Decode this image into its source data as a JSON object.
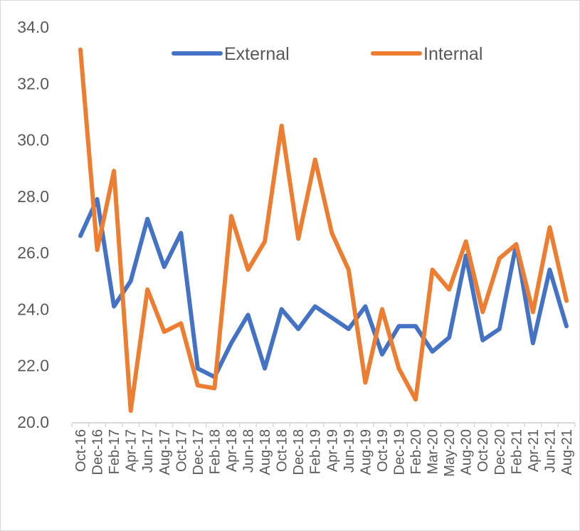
{
  "chart_data": {
    "type": "line",
    "title": "",
    "xlabel": "",
    "ylabel": "",
    "ylim": [
      20,
      34
    ],
    "yticks": [
      "20.0",
      "22.0",
      "24.0",
      "26.0",
      "28.0",
      "30.0",
      "32.0",
      "34.0"
    ],
    "grid": false,
    "legend_position": "top",
    "categories": [
      "Oct-16",
      "Dec-16",
      "Feb-17",
      "Apr-17",
      "Jun-17",
      "Aug-17",
      "Oct-17",
      "Dec-17",
      "Feb-18",
      "Apr-18",
      "Jun-18",
      "Aug-18",
      "Oct-18",
      "Dec-18",
      "Feb-19",
      "Apr-19",
      "Jun-19",
      "Aug-19",
      "Oct-19",
      "Dec-19",
      "Feb-20",
      "Mar-20",
      "May-20",
      "Aug-20",
      "Oct-20",
      "Dec-20",
      "Feb-21",
      "Apr-21",
      "Jun-21",
      "Aug-21"
    ],
    "series": [
      {
        "name": "External",
        "color": "#4472C4",
        "values": [
          26.6,
          27.9,
          24.1,
          25.0,
          27.2,
          25.5,
          26.7,
          21.9,
          21.6,
          22.8,
          23.8,
          21.9,
          24.0,
          23.3,
          24.1,
          23.7,
          23.3,
          24.1,
          22.4,
          23.4,
          23.4,
          22.5,
          23.0,
          25.9,
          22.9,
          23.3,
          26.3,
          22.8,
          25.4,
          23.4
        ]
      },
      {
        "name": "Internal",
        "color": "#ED7D31",
        "values": [
          33.2,
          26.1,
          28.9,
          20.4,
          24.7,
          23.2,
          23.5,
          21.3,
          21.2,
          27.3,
          25.4,
          26.4,
          30.5,
          26.5,
          29.3,
          26.7,
          25.4,
          21.4,
          24.0,
          21.9,
          20.8,
          25.4,
          24.7,
          26.4,
          23.9,
          25.8,
          26.3,
          23.9,
          26.9,
          24.3
        ]
      }
    ]
  }
}
